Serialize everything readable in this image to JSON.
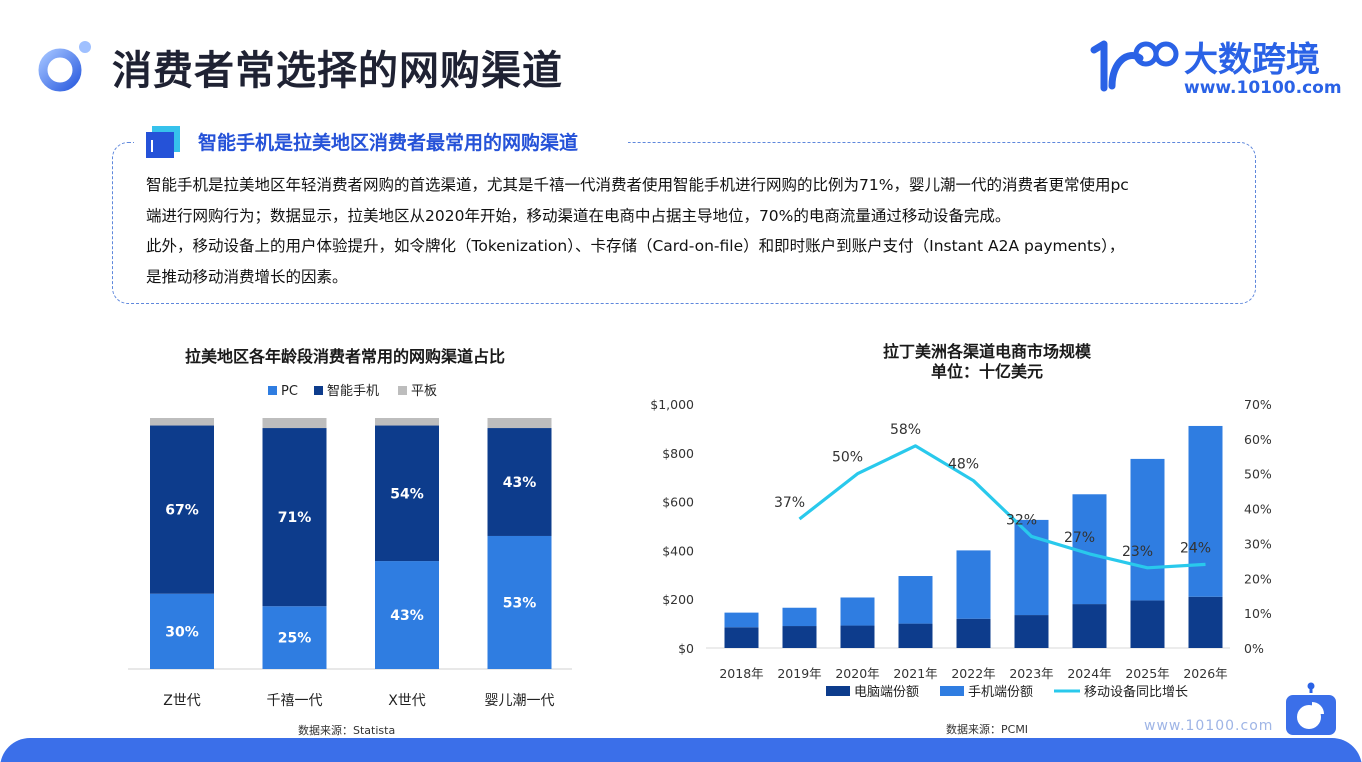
{
  "header": {
    "title": "消费者常选择的网购渠道",
    "brand_name": "大数跨境",
    "brand_url": "www.10100.com"
  },
  "summary": {
    "heading": "智能手机是拉美地区消费者最常用的网购渠道",
    "lines": [
      "智能手机是拉美地区年轻消费者网购的首选渠道，尤其是千禧一代消费者使用智能手机进行网购的比例为71%，婴儿潮一代的消费者更常使用pc",
      "端进行网购行为；数据显示，拉美地区从2020年开始，移动渠道在电商中占据主导地位，70%的电商流量通过移动设备完成。",
      "此外，移动设备上的用户体验提升，如令牌化（Tokenization）、卡存储（Card-on-file）和即时账户到账户支付（Instant A2A payments），",
      "是推动移动消费增长的因素。"
    ]
  },
  "colors": {
    "pc": "#2f7de1",
    "phone": "#0d3c8c",
    "tablet": "#bdbdbd",
    "line": "#29c9ec",
    "accent": "#2a62e6"
  },
  "chart_data": [
    {
      "type": "bar",
      "stacked": true,
      "title": "拉美地区各年龄段消费者常用的网购渠道占比",
      "categories": [
        "Z世代",
        "千禧一代",
        "X世代",
        "婴儿潮一代"
      ],
      "series": [
        {
          "name": "PC",
          "values": [
            30,
            25,
            43,
            53
          ],
          "labels": [
            "30%",
            "25%",
            "43%",
            "53%"
          ]
        },
        {
          "name": "智能手机",
          "values": [
            67,
            71,
            54,
            43
          ],
          "labels": [
            "67%",
            "71%",
            "54%",
            "43%"
          ]
        },
        {
          "name": "平板",
          "values": [
            3,
            4,
            3,
            4
          ]
        }
      ],
      "ylim": [
        0,
        100
      ],
      "legend_position": "top",
      "source": "数据来源：Statista"
    },
    {
      "type": "bar",
      "stacked": true,
      "title": "拉丁美洲各渠道电商市场规模",
      "subtitle": "单位：十亿美元",
      "categories": [
        "2018年",
        "2019年",
        "2020年",
        "2021年",
        "2022年",
        "2023年",
        "2024年",
        "2025年",
        "2026年"
      ],
      "series": [
        {
          "name": "电脑端份额",
          "values": [
            85,
            90,
            92,
            100,
            120,
            135,
            180,
            195,
            210
          ]
        },
        {
          "name": "手机端份额",
          "values": [
            60,
            75,
            115,
            195,
            280,
            390,
            450,
            580,
            700
          ]
        },
        {
          "name": "移动设备同比增长",
          "type": "line",
          "axis": "right",
          "values": [
            null,
            37,
            50,
            58,
            48,
            32,
            27,
            23,
            24
          ],
          "labels": [
            "",
            "37%",
            "50%",
            "58%",
            "48%",
            "32%",
            "27%",
            "23%",
            "24%"
          ]
        }
      ],
      "ylim": [
        0,
        1000
      ],
      "y_ticks": [
        "$0",
        "$200",
        "$400",
        "$600",
        "$800",
        "$1,000"
      ],
      "y2lim": [
        0,
        70
      ],
      "y2_ticks": [
        "0%",
        "10%",
        "20%",
        "30%",
        "40%",
        "50%",
        "60%",
        "70%"
      ],
      "legend_position": "bottom",
      "source": "数据来源：PCMI"
    }
  ],
  "footer": {
    "url": "www.10100.com"
  }
}
